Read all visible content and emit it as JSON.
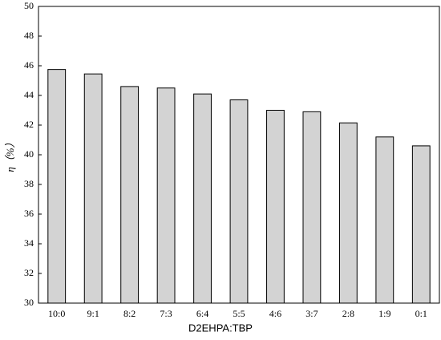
{
  "chart_data": {
    "type": "bar",
    "x_label": "D2EHPA:TBP",
    "y_label": "η（%）",
    "categories": [
      "10:0",
      "9:1",
      "8:2",
      "7:3",
      "6:4",
      "5:5",
      "4:6",
      "3:7",
      "2:8",
      "1:9",
      "0:1"
    ],
    "values": [
      45.75,
      45.45,
      44.6,
      44.5,
      44.1,
      43.7,
      43.0,
      42.9,
      42.15,
      41.2,
      40.6
    ],
    "color": "#d3d3d3",
    "ylim": [
      30,
      50
    ],
    "yticks": [
      30,
      32,
      34,
      36,
      38,
      40,
      42,
      44,
      46,
      48,
      50
    ],
    "grid": false
  }
}
